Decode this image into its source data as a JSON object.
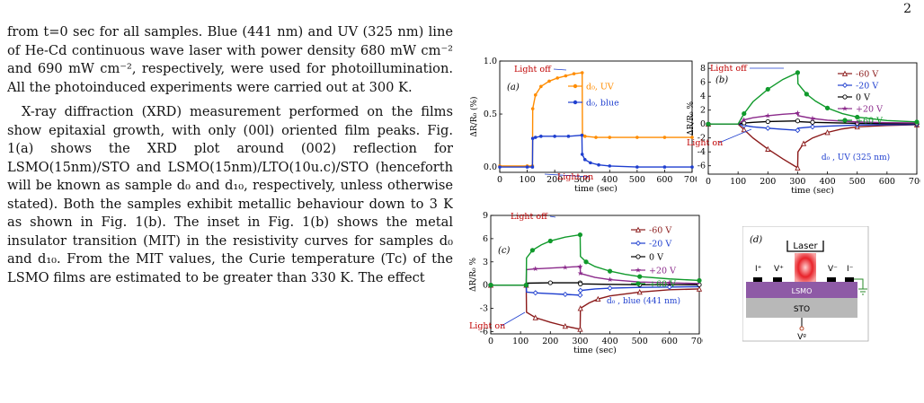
{
  "page_number": "2",
  "paragraphs": [
    "from t=0 sec for all samples. Blue (441 nm) and UV (325 nm) line of He-Cd continuous wave laser with power density 680 mW cm⁻² and 690 mW cm⁻², respectively, were used for photoillumination. All the photoinduced experiments were carried out at 300 K.",
    "X-ray diffraction (XRD) measurement performed on the films show epitaxial growth, with only (00l) oriented film peaks. Fig. 1(a) shows the XRD plot around (002) reflection for LSMO(15nm)/STO and LSMO(15nm)/LTO(10u.c)/STO (henceforth will be known as sample d₀ and d₁₀, respectively, unless otherwise stated). Both the samples exhibit metallic behaviour down to 3 K as shown in Fig. 1(b). The inset in Fig. 1(b) shows the metal insulator transition (MIT) in the resistivity curves for samples d₀ and d₁₀. From the MIT values, the Curie temperature (Tᴄ) of the LSMO films are estimated to be greater than 330 K. The effect"
  ],
  "colors": {
    "orange": "#ff8c00",
    "blue": "#1f3fcf",
    "red": "#c00000",
    "darkred": "#8b1a1a",
    "black": "#000000",
    "purple": "#8b2a8b",
    "green": "#119a2c",
    "lsmo": "#8e5aa6",
    "sto": "#b8b8b8",
    "laser": "#e8232a"
  },
  "chart_data": [
    {
      "type": "line",
      "panel_label": "(a)",
      "xlabel": "time (sec)",
      "ylabel": "ΔR/R₀ (%)",
      "xlim": [
        0,
        700
      ],
      "ylim": [
        -0.05,
        1.0
      ],
      "xticks": [
        "0",
        "100",
        "200",
        "300",
        "400",
        "500",
        "600",
        "700"
      ],
      "yticks": [
        "0.0",
        "0.5",
        "1.0"
      ],
      "annotations": [
        "Light off",
        "Light on"
      ],
      "series": [
        {
          "name": "d₀, UV",
          "color": "orange",
          "x": [
            0,
            100,
            119,
            120,
            130,
            150,
            180,
            210,
            240,
            270,
            300,
            301,
            310,
            350,
            400,
            500,
            600,
            700
          ],
          "y": [
            0.01,
            0.01,
            0.01,
            0.55,
            0.68,
            0.76,
            0.81,
            0.84,
            0.86,
            0.88,
            0.89,
            0.3,
            0.29,
            0.28,
            0.28,
            0.28,
            0.28,
            0.28
          ]
        },
        {
          "name": "d₀, blue",
          "color": "blue",
          "x": [
            0,
            100,
            119,
            120,
            130,
            150,
            200,
            250,
            299,
            300,
            310,
            330,
            360,
            400,
            500,
            600,
            700
          ],
          "y": [
            0.0,
            0.0,
            0.0,
            0.27,
            0.28,
            0.29,
            0.29,
            0.29,
            0.3,
            0.12,
            0.07,
            0.04,
            0.02,
            0.01,
            0.0,
            0.0,
            0.0
          ]
        }
      ]
    },
    {
      "type": "line",
      "panel_label": "(b)",
      "xlabel": "time (sec)",
      "ylabel": "ΔR/R₀ %",
      "xlim": [
        0,
        700
      ],
      "ylim": [
        -7.2,
        8.8
      ],
      "xticks": [
        "0",
        "100",
        "200",
        "300",
        "400",
        "500",
        "600",
        "700"
      ],
      "yticks": [
        "-6",
        "-4",
        "-2",
        "0",
        "2",
        "4",
        "6",
        "8"
      ],
      "annotations": [
        "Light off",
        "Light on",
        "d₀ , UV (325 nm)"
      ],
      "series": [
        {
          "name": "-60 V",
          "color": "darkred",
          "marker": "triangle",
          "x": [
            0,
            100,
            120,
            150,
            200,
            250,
            300,
            301,
            320,
            350,
            400,
            450,
            500,
            600,
            700
          ],
          "y": [
            0,
            0,
            -0.8,
            -2.0,
            -3.6,
            -5.0,
            -6.3,
            -4.0,
            -2.8,
            -2.0,
            -1.2,
            -0.7,
            -0.4,
            -0.2,
            -0.1
          ]
        },
        {
          "name": "-20 V",
          "color": "blue",
          "marker": "diamond",
          "x": [
            0,
            100,
            120,
            150,
            200,
            250,
            300,
            301,
            350,
            400,
            500,
            600,
            700
          ],
          "y": [
            0,
            0,
            -0.2,
            -0.4,
            -0.6,
            -0.75,
            -0.9,
            -0.6,
            -0.4,
            -0.3,
            -0.15,
            -0.1,
            -0.05
          ]
        },
        {
          "name": "0 V",
          "color": "black",
          "marker": "circle",
          "x": [
            0,
            100,
            120,
            150,
            200,
            250,
            300,
            301,
            350,
            400,
            500,
            600,
            700
          ],
          "y": [
            0,
            0,
            0.15,
            0.25,
            0.35,
            0.4,
            0.45,
            0.35,
            0.25,
            0.2,
            0.1,
            0.05,
            0.05
          ]
        },
        {
          "name": "+20 V",
          "color": "purple",
          "marker": "star",
          "x": [
            0,
            100,
            120,
            150,
            200,
            250,
            300,
            301,
            350,
            400,
            500,
            600,
            700
          ],
          "y": [
            0,
            0,
            0.6,
            0.9,
            1.2,
            1.4,
            1.55,
            1.2,
            0.8,
            0.55,
            0.3,
            0.2,
            0.15
          ]
        },
        {
          "name": "+60 V",
          "color": "green",
          "marker": "circle",
          "x": [
            0,
            100,
            120,
            150,
            200,
            250,
            300,
            301,
            330,
            360,
            400,
            450,
            500,
            600,
            700
          ],
          "y": [
            0,
            0,
            1.5,
            3.2,
            5.0,
            6.4,
            7.4,
            5.8,
            4.3,
            3.3,
            2.3,
            1.5,
            1.0,
            0.5,
            0.3
          ]
        }
      ]
    },
    {
      "type": "line",
      "panel_label": "(c)",
      "xlabel": "time (sec)",
      "ylabel": "ΔR/R₀ %",
      "xlim": [
        0,
        700
      ],
      "ylim": [
        -6.3,
        9.0
      ],
      "xticks": [
        "0",
        "100",
        "200",
        "300",
        "400",
        "500",
        "600",
        "700"
      ],
      "yticks": [
        "-6",
        "-3",
        "0",
        "3",
        "6",
        "9"
      ],
      "annotations": [
        "Light off",
        "Light on",
        "d₀ , blue (441 nm)"
      ],
      "series": [
        {
          "name": "-60 V",
          "color": "darkred",
          "marker": "triangle",
          "x": [
            0,
            100,
            119,
            120,
            150,
            200,
            250,
            300,
            301,
            330,
            360,
            400,
            500,
            600,
            700
          ],
          "y": [
            0,
            0,
            0,
            -3.5,
            -4.2,
            -4.8,
            -5.3,
            -5.7,
            -3.0,
            -2.3,
            -1.8,
            -1.4,
            -0.9,
            -0.6,
            -0.5
          ]
        },
        {
          "name": "-20 V",
          "color": "blue",
          "marker": "diamond",
          "x": [
            0,
            100,
            119,
            120,
            150,
            200,
            250,
            300,
            301,
            350,
            400,
            500,
            600,
            700
          ],
          "y": [
            0,
            0,
            0,
            -0.9,
            -1.0,
            -1.1,
            -1.2,
            -1.3,
            -0.7,
            -0.5,
            -0.4,
            -0.3,
            -0.25,
            -0.2
          ]
        },
        {
          "name": "0 V",
          "color": "black",
          "marker": "circle",
          "x": [
            0,
            100,
            119,
            120,
            200,
            300,
            301,
            400,
            500,
            600,
            700
          ],
          "y": [
            0,
            0,
            0,
            0.25,
            0.3,
            0.3,
            0.15,
            0.1,
            0.05,
            0.05,
            0.05
          ]
        },
        {
          "name": "+20 V",
          "color": "purple",
          "marker": "star",
          "x": [
            0,
            100,
            119,
            120,
            150,
            200,
            250,
            300,
            301,
            350,
            400,
            500,
            600,
            700
          ],
          "y": [
            0,
            0,
            0,
            2.0,
            2.1,
            2.2,
            2.3,
            2.4,
            1.5,
            1.0,
            0.7,
            0.4,
            0.3,
            0.2
          ]
        },
        {
          "name": "+60 V",
          "color": "green",
          "marker": "circle",
          "x": [
            0,
            100,
            119,
            120,
            140,
            170,
            200,
            250,
            300,
            301,
            320,
            350,
            400,
            450,
            500,
            600,
            700
          ],
          "y": [
            0,
            0,
            0,
            3.5,
            4.5,
            5.2,
            5.7,
            6.2,
            6.5,
            3.7,
            3.0,
            2.4,
            1.8,
            1.4,
            1.1,
            0.8,
            0.6
          ]
        }
      ]
    }
  ],
  "schematic": {
    "panel_label": "(d)",
    "laser_label": "Laser",
    "lsmo_label": "LSMO",
    "sto_label": "STO",
    "contacts": [
      "I⁺",
      "V⁺",
      "V⁻",
      "I⁻"
    ],
    "gate_label": "Vᵍ"
  }
}
